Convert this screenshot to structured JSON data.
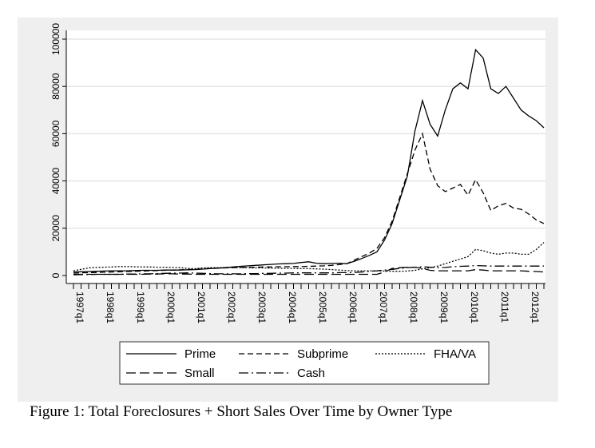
{
  "chart_data": {
    "type": "line",
    "title": "",
    "xlabel": "",
    "ylabel": "",
    "ylim": [
      0,
      100000
    ],
    "yticks": [
      0,
      20000,
      40000,
      60000,
      80000,
      100000
    ],
    "grid": "horizontal",
    "x_start": "1997q1",
    "x_end": "2012q3",
    "xtick_labels": [
      "1997q1",
      "1998q1",
      "1999q1",
      "2000q1",
      "2001q1",
      "2002q1",
      "2003q1",
      "2004q1",
      "2005q1",
      "2006q1",
      "2007q1",
      "2008q1",
      "2009q1",
      "2010q1",
      "2011q1",
      "2012q1"
    ],
    "legend_placement": "bottom",
    "series": [
      {
        "name": "Prime",
        "style": "solid",
        "values": [
          1500,
          1600,
          1700,
          1800,
          1900,
          2000,
          2000,
          2000,
          2100,
          2200,
          2200,
          2200,
          2300,
          2300,
          2300,
          2400,
          2500,
          2700,
          2900,
          3100,
          3300,
          3600,
          3900,
          4100,
          4300,
          4500,
          4700,
          4900,
          5000,
          5100,
          5500,
          5800,
          5200,
          5000,
          5100,
          5200,
          5000,
          6000,
          7200,
          8500,
          10000,
          15000,
          22000,
          32000,
          42000,
          61000,
          74000,
          64000,
          59000,
          70000,
          79000,
          81500,
          79000,
          95500,
          92000,
          79000,
          77000,
          80000,
          75000,
          70000,
          67500,
          65500,
          62500
        ]
      },
      {
        "name": "Subprime",
        "style": "dashed",
        "values": [
          1000,
          1100,
          1200,
          1300,
          1400,
          1500,
          1600,
          1700,
          1800,
          1900,
          2000,
          2100,
          2200,
          2300,
          2400,
          2500,
          2600,
          2800,
          3000,
          3100,
          3200,
          3300,
          3400,
          3500,
          3500,
          3600,
          3600,
          3700,
          3700,
          3800,
          3800,
          3900,
          4000,
          4100,
          4300,
          4600,
          5000,
          6500,
          8000,
          9500,
          11500,
          16000,
          23000,
          33000,
          43000,
          53000,
          60000,
          45000,
          38000,
          35500,
          37000,
          38500,
          34000,
          40500,
          35000,
          27500,
          29500,
          30500,
          28500,
          28000,
          26000,
          23500,
          22000
        ]
      },
      {
        "name": "FHA/VA",
        "style": "dotted",
        "values": [
          2000,
          2600,
          3200,
          3400,
          3500,
          3600,
          3800,
          3800,
          3700,
          3600,
          3600,
          3500,
          3500,
          3400,
          3300,
          3000,
          2900,
          3200,
          3300,
          3300,
          3400,
          3400,
          3300,
          3300,
          3200,
          3200,
          3100,
          3100,
          3000,
          3000,
          2900,
          2900,
          2800,
          2700,
          2500,
          2300,
          2100,
          2000,
          2000,
          2000,
          2000,
          1900,
          1800,
          1800,
          1900,
          2200,
          2800,
          3300,
          4000,
          5000,
          6000,
          7000,
          8000,
          11000,
          10500,
          9500,
          9000,
          9500,
          9500,
          9000,
          9000,
          11000,
          14000
        ]
      },
      {
        "name": "Small",
        "style": "longdash",
        "values": [
          500,
          500,
          500,
          500,
          500,
          500,
          500,
          500,
          500,
          500,
          600,
          600,
          700,
          700,
          600,
          600,
          500,
          500,
          500,
          500,
          500,
          500,
          500,
          500,
          500,
          500,
          500,
          500,
          500,
          500,
          500,
          500,
          500,
          500,
          500,
          500,
          500,
          500,
          500,
          500,
          500,
          1500,
          3000,
          3300,
          3500,
          3500,
          3000,
          2200,
          2000,
          2000,
          2000,
          2000,
          2000,
          2500,
          2300,
          2000,
          2000,
          2000,
          2000,
          2000,
          1800,
          1700,
          1500
        ]
      },
      {
        "name": "Cash",
        "style": "dashdot",
        "values": [
          300,
          400,
          400,
          500,
          500,
          500,
          500,
          600,
          600,
          700,
          700,
          800,
          900,
          1000,
          1000,
          1100,
          1000,
          900,
          800,
          700,
          700,
          700,
          700,
          800,
          800,
          900,
          900,
          1000,
          1000,
          1100,
          1100,
          1100,
          1100,
          1100,
          1100,
          1200,
          1200,
          1300,
          1500,
          1800,
          2000,
          2300,
          2600,
          3000,
          3300,
          3500,
          3700,
          3500,
          3300,
          3400,
          3700,
          3900,
          4000,
          4200,
          4100,
          4000,
          4000,
          4000,
          4000,
          4000,
          4000,
          4000,
          4000
        ]
      }
    ]
  },
  "caption": "Figure 1:  Total Foreclosures + Short Sales Over Time by Owner Type"
}
